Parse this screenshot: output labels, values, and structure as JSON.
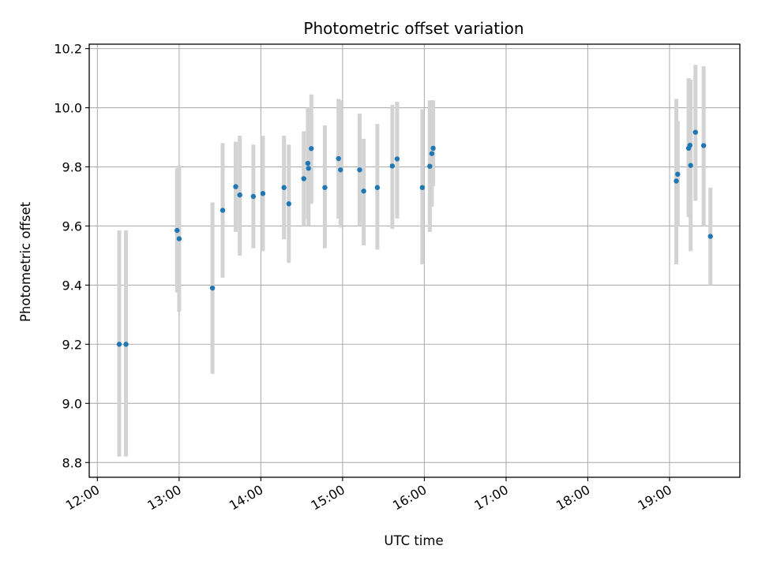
{
  "chart_data": {
    "type": "scatter",
    "title": "Photometric offset variation",
    "xlabel": "UTC time",
    "ylabel": "Photometric offset",
    "x_unit": "hours",
    "xlim": [
      11.9,
      19.86
    ],
    "ylim": [
      8.75,
      10.215
    ],
    "x_ticks": [
      {
        "value": 12,
        "label": "12:00"
      },
      {
        "value": 13,
        "label": "13:00"
      },
      {
        "value": 14,
        "label": "14:00"
      },
      {
        "value": 15,
        "label": "15:00"
      },
      {
        "value": 16,
        "label": "16:00"
      },
      {
        "value": 17,
        "label": "17:00"
      },
      {
        "value": 18,
        "label": "18:00"
      },
      {
        "value": 19,
        "label": "19:00"
      }
    ],
    "y_ticks": [
      {
        "value": 8.8,
        "label": "8.8"
      },
      {
        "value": 9.0,
        "label": "9.0"
      },
      {
        "value": 9.2,
        "label": "9.2"
      },
      {
        "value": 9.4,
        "label": "9.4"
      },
      {
        "value": 9.6,
        "label": "9.6"
      },
      {
        "value": 9.8,
        "label": "9.8"
      },
      {
        "value": 10.0,
        "label": "10.0"
      },
      {
        "value": 10.2,
        "label": "10.2"
      }
    ],
    "grid": true,
    "colors": {
      "marker": "#1f77b4",
      "error_bar": "#d3d3d3",
      "grid": "#b0b0b0",
      "axes": "#000000"
    },
    "points": [
      {
        "x": 12.267,
        "y": 9.2,
        "ylow": 8.82,
        "yhigh": 9.585
      },
      {
        "x": 12.35,
        "y": 9.2,
        "ylow": 8.82,
        "yhigh": 9.585
      },
      {
        "x": 12.975,
        "y": 9.585,
        "ylow": 9.375,
        "yhigh": 9.795
      },
      {
        "x": 13.0,
        "y": 9.557,
        "ylow": 9.31,
        "yhigh": 9.805
      },
      {
        "x": 13.408,
        "y": 9.39,
        "ylow": 9.1,
        "yhigh": 9.68
      },
      {
        "x": 13.533,
        "y": 9.653,
        "ylow": 9.425,
        "yhigh": 9.88
      },
      {
        "x": 13.692,
        "y": 9.733,
        "ylow": 9.58,
        "yhigh": 9.885
      },
      {
        "x": 13.742,
        "y": 9.705,
        "ylow": 9.5,
        "yhigh": 9.905
      },
      {
        "x": 13.908,
        "y": 9.7,
        "ylow": 9.525,
        "yhigh": 9.875
      },
      {
        "x": 14.025,
        "y": 9.71,
        "ylow": 9.515,
        "yhigh": 9.905
      },
      {
        "x": 14.283,
        "y": 9.73,
        "ylow": 9.555,
        "yhigh": 9.905
      },
      {
        "x": 14.342,
        "y": 9.675,
        "ylow": 9.475,
        "yhigh": 9.875
      },
      {
        "x": 14.525,
        "y": 9.76,
        "ylow": 9.6,
        "yhigh": 9.92
      },
      {
        "x": 14.575,
        "y": 9.812,
        "ylow": 9.625,
        "yhigh": 10.0
      },
      {
        "x": 14.583,
        "y": 9.795,
        "ylow": 9.6,
        "yhigh": 9.99
      },
      {
        "x": 14.617,
        "y": 9.862,
        "ylow": 9.675,
        "yhigh": 10.045
      },
      {
        "x": 14.783,
        "y": 9.73,
        "ylow": 9.525,
        "yhigh": 9.94
      },
      {
        "x": 14.95,
        "y": 9.828,
        "ylow": 9.625,
        "yhigh": 10.03
      },
      {
        "x": 14.975,
        "y": 9.79,
        "ylow": 9.595,
        "yhigh": 10.025
      },
      {
        "x": 15.208,
        "y": 9.79,
        "ylow": 9.6,
        "yhigh": 9.98
      },
      {
        "x": 15.258,
        "y": 9.718,
        "ylow": 9.535,
        "yhigh": 9.895
      },
      {
        "x": 15.425,
        "y": 9.73,
        "ylow": 9.52,
        "yhigh": 9.945
      },
      {
        "x": 15.608,
        "y": 9.803,
        "ylow": 9.59,
        "yhigh": 10.01
      },
      {
        "x": 15.667,
        "y": 9.827,
        "ylow": 9.625,
        "yhigh": 10.02
      },
      {
        "x": 15.975,
        "y": 9.73,
        "ylow": 9.47,
        "yhigh": 9.995
      },
      {
        "x": 16.067,
        "y": 9.802,
        "ylow": 9.58,
        "yhigh": 10.025
      },
      {
        "x": 16.092,
        "y": 9.845,
        "ylow": 9.665,
        "yhigh": 10.025
      },
      {
        "x": 16.108,
        "y": 9.863,
        "ylow": 9.735,
        "yhigh": 10.025
      },
      {
        "x": 19.083,
        "y": 9.752,
        "ylow": 9.47,
        "yhigh": 10.03
      },
      {
        "x": 19.1,
        "y": 9.775,
        "ylow": 9.6,
        "yhigh": 9.955
      },
      {
        "x": 19.233,
        "y": 9.863,
        "ylow": 9.63,
        "yhigh": 10.1
      },
      {
        "x": 19.25,
        "y": 9.873,
        "ylow": 9.655,
        "yhigh": 10.09
      },
      {
        "x": 19.258,
        "y": 9.805,
        "ylow": 9.515,
        "yhigh": 10.095
      },
      {
        "x": 19.317,
        "y": 9.917,
        "ylow": 9.685,
        "yhigh": 10.145
      },
      {
        "x": 19.417,
        "y": 9.872,
        "ylow": 9.6,
        "yhigh": 10.14
      },
      {
        "x": 19.5,
        "y": 9.565,
        "ylow": 9.4,
        "yhigh": 9.73
      }
    ]
  }
}
